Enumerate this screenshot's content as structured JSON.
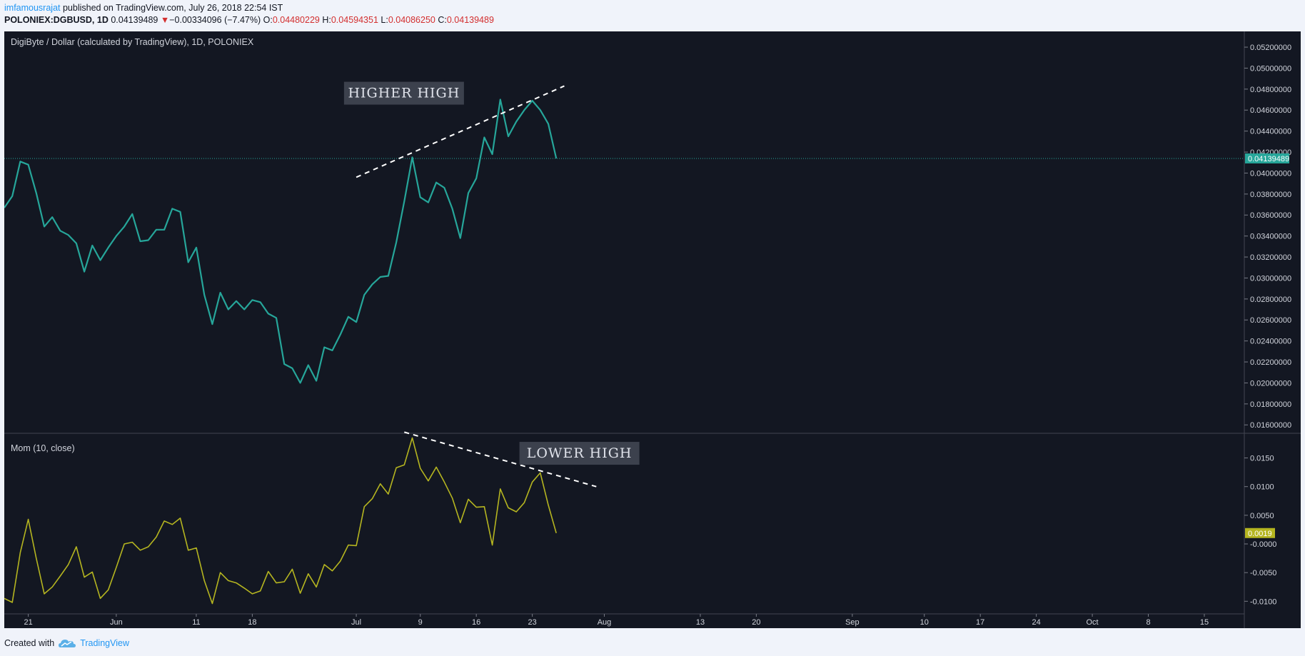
{
  "header": {
    "author": "imfamousrajat",
    "published_text": " published on TradingView.com, July 26, 2018 22:54 IST",
    "symbol": "POLONIEX:DGBUSD, 1D",
    "last": "0.04139489",
    "change_arrow": "▼",
    "change": "−0.00334096 (−7.47%)",
    "o_label": "O:",
    "o_value": "0.04480229",
    "h_label": "H:",
    "h_value": "0.04594351",
    "l_label": "L:",
    "l_value": "0.04086250",
    "c_label": "C:",
    "c_value": "0.04139489"
  },
  "footer": {
    "created_with": "Created with",
    "brand": "TradingView",
    "logo_icon": "tradingview-cloud-icon"
  },
  "colors": {
    "background": "#131722",
    "price_line": "#26a69a",
    "momentum_line": "#b5b520",
    "annotation_box": "#3c414d",
    "annotation_text": "#e0e3eb",
    "trendline": "#ffffff",
    "axis_text": "#d1d4dc",
    "red": "#d32f2f"
  },
  "chart_data": [
    {
      "type": "line",
      "title": "DigiByte / Dollar (calculated by TradingView), 1D, POLONIEX",
      "ylim": [
        0.0152,
        0.0535
      ],
      "y_ticks": [
        "0.05200000",
        "0.05000000",
        "0.04800000",
        "0.04600000",
        "0.04400000",
        "0.04200000",
        "0.04000000",
        "0.03800000",
        "0.03600000",
        "0.03400000",
        "0.03200000",
        "0.03000000",
        "0.02800000",
        "0.02600000",
        "0.02400000",
        "0.02200000",
        "0.02000000",
        "0.01800000",
        "0.01600000"
      ],
      "y_tick_values": [
        0.052,
        0.05,
        0.048,
        0.046,
        0.044,
        0.042,
        0.04,
        0.038,
        0.036,
        0.034,
        0.032,
        0.03,
        0.028,
        0.026,
        0.024,
        0.022,
        0.02,
        0.018,
        0.016
      ],
      "last_value": 0.04139489,
      "last_label": "0.04139489",
      "x": [
        "2018-05-18",
        "2018-05-19",
        "2018-05-20",
        "2018-05-21",
        "2018-05-22",
        "2018-05-23",
        "2018-05-24",
        "2018-05-25",
        "2018-05-26",
        "2018-05-27",
        "2018-05-28",
        "2018-05-29",
        "2018-05-30",
        "2018-05-31",
        "2018-06-01",
        "2018-06-02",
        "2018-06-03",
        "2018-06-04",
        "2018-06-05",
        "2018-06-06",
        "2018-06-07",
        "2018-06-08",
        "2018-06-09",
        "2018-06-10",
        "2018-06-11",
        "2018-06-12",
        "2018-06-13",
        "2018-06-14",
        "2018-06-15",
        "2018-06-16",
        "2018-06-17",
        "2018-06-18",
        "2018-06-19",
        "2018-06-20",
        "2018-06-21",
        "2018-06-22",
        "2018-06-23",
        "2018-06-24",
        "2018-06-25",
        "2018-06-26",
        "2018-06-27",
        "2018-06-28",
        "2018-06-29",
        "2018-06-30",
        "2018-07-01",
        "2018-07-02",
        "2018-07-03",
        "2018-07-04",
        "2018-07-05",
        "2018-07-06",
        "2018-07-07",
        "2018-07-08",
        "2018-07-09",
        "2018-07-10",
        "2018-07-11",
        "2018-07-12",
        "2018-07-13",
        "2018-07-14",
        "2018-07-15",
        "2018-07-16",
        "2018-07-17",
        "2018-07-18",
        "2018-07-19",
        "2018-07-20",
        "2018-07-21",
        "2018-07-22",
        "2018-07-23",
        "2018-07-24",
        "2018-07-25",
        "2018-07-26"
      ],
      "series": [
        {
          "values": [
            0.0367,
            0.0378,
            0.0411,
            0.0408,
            0.0381,
            0.0349,
            0.0358,
            0.0345,
            0.0341,
            0.0333,
            0.0306,
            0.0331,
            0.0317,
            0.0329,
            0.034,
            0.0349,
            0.0361,
            0.0335,
            0.0336,
            0.0346,
            0.0346,
            0.0366,
            0.0363,
            0.0315,
            0.0329,
            0.0284,
            0.0256,
            0.0286,
            0.027,
            0.0278,
            0.027,
            0.0279,
            0.0277,
            0.0266,
            0.0262,
            0.0218,
            0.0214,
            0.02,
            0.0217,
            0.0202,
            0.0234,
            0.0231,
            0.0246,
            0.0263,
            0.0258,
            0.0284,
            0.0294,
            0.0301,
            0.0302,
            0.0334,
            0.0373,
            0.0415,
            0.0377,
            0.0372,
            0.0391,
            0.0386,
            0.0366,
            0.0338,
            0.0381,
            0.0395,
            0.0434,
            0.0418,
            0.047,
            0.0435,
            0.0449,
            0.046,
            0.0469,
            0.046,
            0.0447,
            0.0414
          ]
        }
      ],
      "annotation": "HIGHER HIGH"
    },
    {
      "type": "line",
      "title": "Mom (10, close)",
      "ylim": [
        -0.0122,
        0.0193
      ],
      "y_ticks": [
        "0.0150",
        "0.0100",
        "0.0050",
        "-0.0000",
        "-0.0050",
        "-0.0100"
      ],
      "y_tick_values": [
        0.015,
        0.01,
        0.005,
        0.0,
        -0.005,
        -0.01
      ],
      "last_value": 0.0019,
      "last_label": "0.0019",
      "x": [
        "2018-05-18",
        "2018-05-19",
        "2018-05-20",
        "2018-05-21",
        "2018-05-22",
        "2018-05-23",
        "2018-05-24",
        "2018-05-25",
        "2018-05-26",
        "2018-05-27",
        "2018-05-28",
        "2018-05-29",
        "2018-05-30",
        "2018-05-31",
        "2018-06-01",
        "2018-06-02",
        "2018-06-03",
        "2018-06-04",
        "2018-06-05",
        "2018-06-06",
        "2018-06-07",
        "2018-06-08",
        "2018-06-09",
        "2018-06-10",
        "2018-06-11",
        "2018-06-12",
        "2018-06-13",
        "2018-06-14",
        "2018-06-15",
        "2018-06-16",
        "2018-06-17",
        "2018-06-18",
        "2018-06-19",
        "2018-06-20",
        "2018-06-21",
        "2018-06-22",
        "2018-06-23",
        "2018-06-24",
        "2018-06-25",
        "2018-06-26",
        "2018-06-27",
        "2018-06-28",
        "2018-06-29",
        "2018-06-30",
        "2018-07-01",
        "2018-07-02",
        "2018-07-03",
        "2018-07-04",
        "2018-07-05",
        "2018-07-06",
        "2018-07-07",
        "2018-07-08",
        "2018-07-09",
        "2018-07-10",
        "2018-07-11",
        "2018-07-12",
        "2018-07-13",
        "2018-07-14",
        "2018-07-15",
        "2018-07-16",
        "2018-07-17",
        "2018-07-18",
        "2018-07-19",
        "2018-07-20",
        "2018-07-21",
        "2018-07-22",
        "2018-07-23",
        "2018-07-24",
        "2018-07-25",
        "2018-07-26"
      ],
      "series": [
        {
          "values": [
            -0.0095,
            -0.0102,
            -0.0015,
            0.0043,
            -0.0025,
            -0.0087,
            -0.0075,
            -0.0056,
            -0.0036,
            -0.0005,
            -0.0058,
            -0.0049,
            -0.0095,
            -0.008,
            -0.0041,
            0.0,
            0.0003,
            -0.0011,
            -0.0005,
            0.0012,
            0.004,
            0.0034,
            0.0045,
            -0.0011,
            -0.0007,
            -0.0064,
            -0.0104,
            -0.005,
            -0.0064,
            -0.0068,
            -0.0077,
            -0.0087,
            -0.0082,
            -0.0048,
            -0.0068,
            -0.0066,
            -0.0044,
            -0.0086,
            -0.0052,
            -0.0075,
            -0.0036,
            -0.0047,
            -0.003,
            -0.0002,
            -0.0003,
            0.0065,
            0.0079,
            0.0105,
            0.0087,
            0.0133,
            0.0138,
            0.0185,
            0.0132,
            0.011,
            0.0134,
            0.0108,
            0.008,
            0.0037,
            0.0078,
            0.0064,
            0.0065,
            -0.0002,
            0.0096,
            0.0063,
            0.0056,
            0.0072,
            0.0108,
            0.0124,
            0.0068,
            0.0019
          ]
        }
      ],
      "annotation": "LOWER HIGH"
    }
  ],
  "x_axis": {
    "labels": [
      "21",
      "Jun",
      "11",
      "18",
      "Jul",
      "9",
      "16",
      "23",
      "Aug",
      "13",
      "20",
      "Sep",
      "10",
      "17",
      "24",
      "Oct",
      "8",
      "15"
    ],
    "dates": [
      "2018-05-21",
      "2018-06-01",
      "2018-06-11",
      "2018-06-18",
      "2018-07-01",
      "2018-07-09",
      "2018-07-16",
      "2018-07-23",
      "2018-08-01",
      "2018-08-13",
      "2018-08-20",
      "2018-09-01",
      "2018-09-10",
      "2018-09-17",
      "2018-09-24",
      "2018-10-01",
      "2018-10-08",
      "2018-10-15"
    ],
    "range": [
      "2018-05-18",
      "2018-10-20"
    ]
  },
  "trendlines": [
    {
      "pane": 0,
      "from": [
        "2018-07-01",
        0.0396
      ],
      "to": [
        "2018-07-27",
        0.0483
      ]
    },
    {
      "pane": 1,
      "from": [
        "2018-07-07",
        0.0195
      ],
      "to": [
        "2018-07-31",
        0.01
      ]
    }
  ]
}
